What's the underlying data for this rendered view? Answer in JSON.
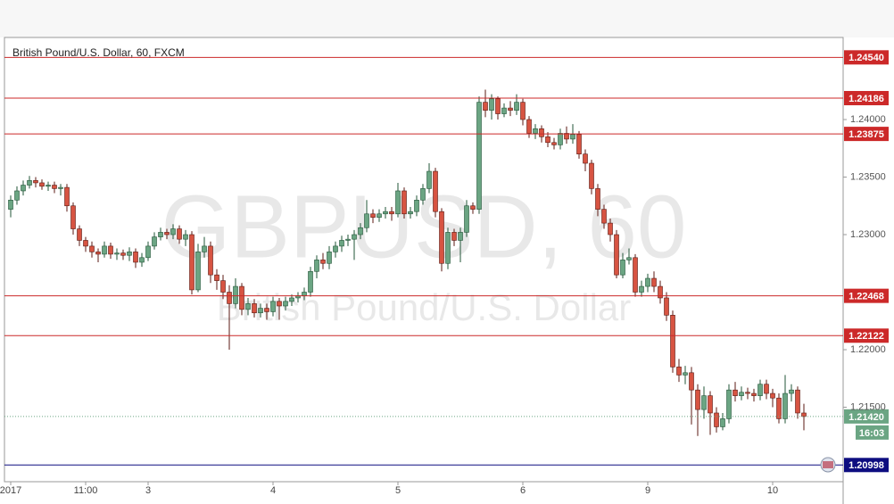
{
  "chart_data": {
    "type": "candlestick",
    "title": "British Pound/U.S. Dollar, 60, FXCM",
    "watermark": "GBPUSD, 60",
    "watermark_subtitle": "British Pound/U.S. Dollar",
    "up_color": "#6ba583",
    "down_color": "#d75442",
    "categories": [
      "2017",
      null,
      null,
      null,
      null,
      null,
      null,
      null,
      null,
      null,
      null,
      null,
      "11:00",
      null,
      null,
      null,
      null,
      null,
      null,
      null,
      null,
      null,
      "3",
      null,
      null,
      null,
      null,
      null,
      null,
      null,
      null,
      null,
      null,
      null,
      null,
      null,
      null,
      null,
      null,
      null,
      null,
      null,
      "4",
      null,
      null,
      null,
      null,
      null,
      null,
      null,
      null,
      null,
      null,
      null,
      null,
      null,
      null,
      null,
      null,
      null,
      null,
      null,
      "5",
      null,
      null,
      null,
      null,
      null,
      null,
      null,
      null,
      null,
      null,
      null,
      null,
      null,
      null,
      null,
      null,
      null,
      null,
      null,
      "6",
      null,
      null,
      null,
      null,
      null,
      null,
      null,
      null,
      null,
      null,
      null,
      null,
      null,
      null,
      null,
      null,
      null,
      null,
      null,
      "9",
      null,
      null,
      null,
      null,
      null,
      null,
      null,
      null,
      null,
      null,
      null,
      null,
      null,
      null,
      null,
      null,
      null,
      null,
      null,
      "10",
      null,
      null,
      null,
      null,
      null
    ],
    "open": [
      1.2322,
      1.233,
      1.2338,
      1.2343,
      1.2347,
      1.2345,
      1.2342,
      1.2343,
      1.234,
      1.2341,
      1.2325,
      1.2305,
      1.2295,
      1.229,
      1.2285,
      1.2283,
      1.229,
      1.2283,
      1.2284,
      1.2282,
      1.2285,
      1.2276,
      1.228,
      1.229,
      1.2298,
      1.2302,
      1.23,
      1.2305,
      1.2296,
      1.23,
      1.2252,
      1.2285,
      1.229,
      1.2265,
      1.226,
      1.225,
      1.224,
      1.2255,
      1.2235,
      1.224,
      1.2232,
      1.2236,
      1.2233,
      1.2242,
      1.2238,
      1.2242,
      1.2245,
      1.2247,
      1.225,
      1.2268,
      1.2278,
      1.2275,
      1.2285,
      1.229,
      1.2295,
      1.2296,
      1.23,
      1.2306,
      1.2318,
      1.2315,
      1.2318,
      1.232,
      1.2318,
      1.2338,
      1.2318,
      1.232,
      1.233,
      1.234,
      1.2355,
      1.232,
      1.2275,
      1.2302,
      1.2295,
      1.2302,
      1.2325,
      1.2322,
      1.2415,
      1.2408,
      1.2418,
      1.2405,
      1.241,
      1.2408,
      1.2415,
      1.24,
      1.2388,
      1.2392,
      1.2385,
      1.238,
      1.2378,
      1.2388,
      1.2383,
      1.2387,
      1.237,
      1.2362,
      1.234,
      1.2322,
      1.231,
      1.23,
      1.2265,
      1.2278,
      1.228,
      1.225,
      1.2255,
      1.2262,
      1.2255,
      1.2245,
      1.223,
      1.2185,
      1.2178,
      1.218,
      1.2165,
      1.2148,
      1.216,
      1.2145,
      1.2133,
      1.214,
      1.2165,
      1.216,
      1.2163,
      1.2162,
      1.216,
      1.217,
      1.2162,
      1.2158,
      1.214,
      1.2162,
      1.2165,
      1.2145
    ],
    "high": [
      1.2334,
      1.2342,
      1.2347,
      1.2351,
      1.235,
      1.2348,
      1.2346,
      1.2346,
      1.2344,
      1.2344,
      1.2328,
      1.2308,
      1.2298,
      1.2294,
      1.2288,
      1.2294,
      1.2293,
      1.2288,
      1.2287,
      1.2289,
      1.2288,
      1.2284,
      1.2294,
      1.2302,
      1.2306,
      1.2305,
      1.2309,
      1.2308,
      1.2304,
      1.2303,
      1.2292,
      1.2298,
      1.2294,
      1.227,
      1.2265,
      1.2256,
      1.2262,
      1.2258,
      1.2245,
      1.2244,
      1.224,
      1.224,
      1.2246,
      1.2245,
      1.2246,
      1.2248,
      1.225,
      1.2254,
      1.2272,
      1.2282,
      1.2284,
      1.229,
      1.2294,
      1.2299,
      1.23,
      1.2304,
      1.231,
      1.233,
      1.2322,
      1.2322,
      1.2324,
      1.2324,
      1.2345,
      1.2341,
      1.2324,
      1.2334,
      1.2344,
      1.2362,
      1.2358,
      1.2323,
      1.2306,
      1.2305,
      1.2306,
      1.233,
      1.2328,
      1.242,
      1.2426,
      1.2422,
      1.242,
      1.2414,
      1.2416,
      1.2422,
      1.2418,
      1.2403,
      1.2396,
      1.2395,
      1.2389,
      1.2384,
      1.2392,
      1.2394,
      1.2396,
      1.239,
      1.2374,
      1.2365,
      1.2344,
      1.2326,
      1.2314,
      1.2304,
      1.2284,
      1.2288,
      1.2283,
      1.226,
      1.2266,
      1.2268,
      1.226,
      1.225,
      1.2234,
      1.2192,
      1.2186,
      1.2185,
      1.217,
      1.2168,
      1.2164,
      1.215,
      1.2145,
      1.217,
      1.2172,
      1.2168,
      1.2167,
      1.2166,
      1.2174,
      1.2174,
      1.2166,
      1.2162,
      1.2178,
      1.217,
      1.2168,
      1.2153
    ],
    "low": [
      1.2315,
      1.2326,
      1.2334,
      1.234,
      1.2341,
      1.2339,
      1.2338,
      1.2336,
      1.2334,
      1.232,
      1.23,
      1.229,
      1.2285,
      1.228,
      1.2276,
      1.228,
      1.2279,
      1.2278,
      1.2278,
      1.2277,
      1.2271,
      1.2272,
      1.2277,
      1.2287,
      1.2295,
      1.2296,
      1.2296,
      1.2292,
      1.229,
      1.2248,
      1.225,
      1.228,
      1.2258,
      1.2252,
      1.2244,
      1.22,
      1.2236,
      1.223,
      1.223,
      1.2228,
      1.2228,
      1.2226,
      1.2229,
      1.2226,
      1.2234,
      1.2238,
      1.2241,
      1.2243,
      1.2246,
      1.2262,
      1.227,
      1.227,
      1.228,
      1.2285,
      1.229,
      1.2278,
      1.2296,
      1.2302,
      1.231,
      1.2311,
      1.2314,
      1.2312,
      1.2315,
      1.2314,
      1.2314,
      1.2316,
      1.2326,
      1.2336,
      1.2315,
      1.2268,
      1.227,
      1.229,
      1.2276,
      1.2298,
      1.2318,
      1.2318,
      1.2402,
      1.24,
      1.24,
      1.2402,
      1.2403,
      1.2404,
      1.2395,
      1.2384,
      1.2383,
      1.238,
      1.2376,
      1.2374,
      1.2374,
      1.2379,
      1.2379,
      1.2366,
      1.2355,
      1.2335,
      1.2316,
      1.2305,
      1.2294,
      1.2262,
      1.2262,
      1.2274,
      1.2246,
      1.2246,
      1.225,
      1.225,
      1.224,
      1.2225,
      1.218,
      1.2172,
      1.217,
      1.2135,
      1.2125,
      1.214,
      1.2126,
      1.2128,
      1.213,
      1.2136,
      1.2155,
      1.2156,
      1.2157,
      1.2155,
      1.2156,
      1.2157,
      1.215,
      1.2136,
      1.2136,
      1.2155,
      1.214,
      1.213
    ],
    "close": [
      1.233,
      1.2338,
      1.2343,
      1.2347,
      1.2345,
      1.2342,
      1.2343,
      1.234,
      1.2341,
      1.2325,
      1.2305,
      1.2295,
      1.229,
      1.2285,
      1.2283,
      1.229,
      1.2283,
      1.2284,
      1.2282,
      1.2285,
      1.2276,
      1.228,
      1.229,
      1.2298,
      1.2302,
      1.23,
      1.2305,
      1.2296,
      1.23,
      1.2252,
      1.2285,
      1.229,
      1.2265,
      1.226,
      1.225,
      1.224,
      1.2255,
      1.2235,
      1.224,
      1.2232,
      1.2236,
      1.2233,
      1.2242,
      1.2238,
      1.2242,
      1.2245,
      1.2247,
      1.225,
      1.2268,
      1.2278,
      1.2275,
      1.2285,
      1.229,
      1.2295,
      1.2296,
      1.23,
      1.2306,
      1.2318,
      1.2315,
      1.2318,
      1.232,
      1.2318,
      1.2338,
      1.2318,
      1.232,
      1.233,
      1.234,
      1.2355,
      1.232,
      1.2275,
      1.2302,
      1.2295,
      1.2302,
      1.2325,
      1.2322,
      1.2415,
      1.2408,
      1.2418,
      1.2405,
      1.241,
      1.2408,
      1.2415,
      1.24,
      1.2388,
      1.2392,
      1.2385,
      1.238,
      1.2378,
      1.2388,
      1.2383,
      1.2387,
      1.237,
      1.2362,
      1.234,
      1.2322,
      1.231,
      1.23,
      1.2265,
      1.2278,
      1.228,
      1.225,
      1.2255,
      1.2262,
      1.2255,
      1.2245,
      1.223,
      1.2185,
      1.2178,
      1.218,
      1.2165,
      1.2148,
      1.216,
      1.2145,
      1.2133,
      1.214,
      1.2165,
      1.216,
      1.2163,
      1.2162,
      1.216,
      1.217,
      1.2162,
      1.2158,
      1.214,
      1.2162,
      1.2165,
      1.2145,
      1.2142
    ],
    "ylim": [
      1.20853,
      1.24713
    ],
    "yticks": [
      {
        "value": 1.24,
        "label": "1.24000"
      },
      {
        "value": 1.235,
        "label": "1.23500"
      },
      {
        "value": 1.23,
        "label": "1.23000"
      },
      {
        "value": 1.22,
        "label": "1.22000"
      },
      {
        "value": 1.215,
        "label": "1.21500"
      }
    ],
    "levels": [
      {
        "value": 1.2454,
        "label": "1.24540",
        "color": "#cc2929",
        "style": "solid"
      },
      {
        "value": 1.24186,
        "label": "1.24186",
        "color": "#cc2929",
        "style": "solid"
      },
      {
        "value": 1.23875,
        "label": "1.23875",
        "color": "#cc2929",
        "style": "solid"
      },
      {
        "value": 1.22468,
        "label": "1.22468",
        "color": "#cc2929",
        "style": "solid"
      },
      {
        "value": 1.22122,
        "label": "1.22122",
        "color": "#cc2929",
        "style": "solid"
      },
      {
        "value": 1.2142,
        "label": "1.21420",
        "color": "#6ba583",
        "style": "dotted"
      },
      {
        "value": 1.20998,
        "label": "1.20998",
        "color": "#0d0d80",
        "style": "solid"
      }
    ],
    "countdown": "16:03"
  }
}
